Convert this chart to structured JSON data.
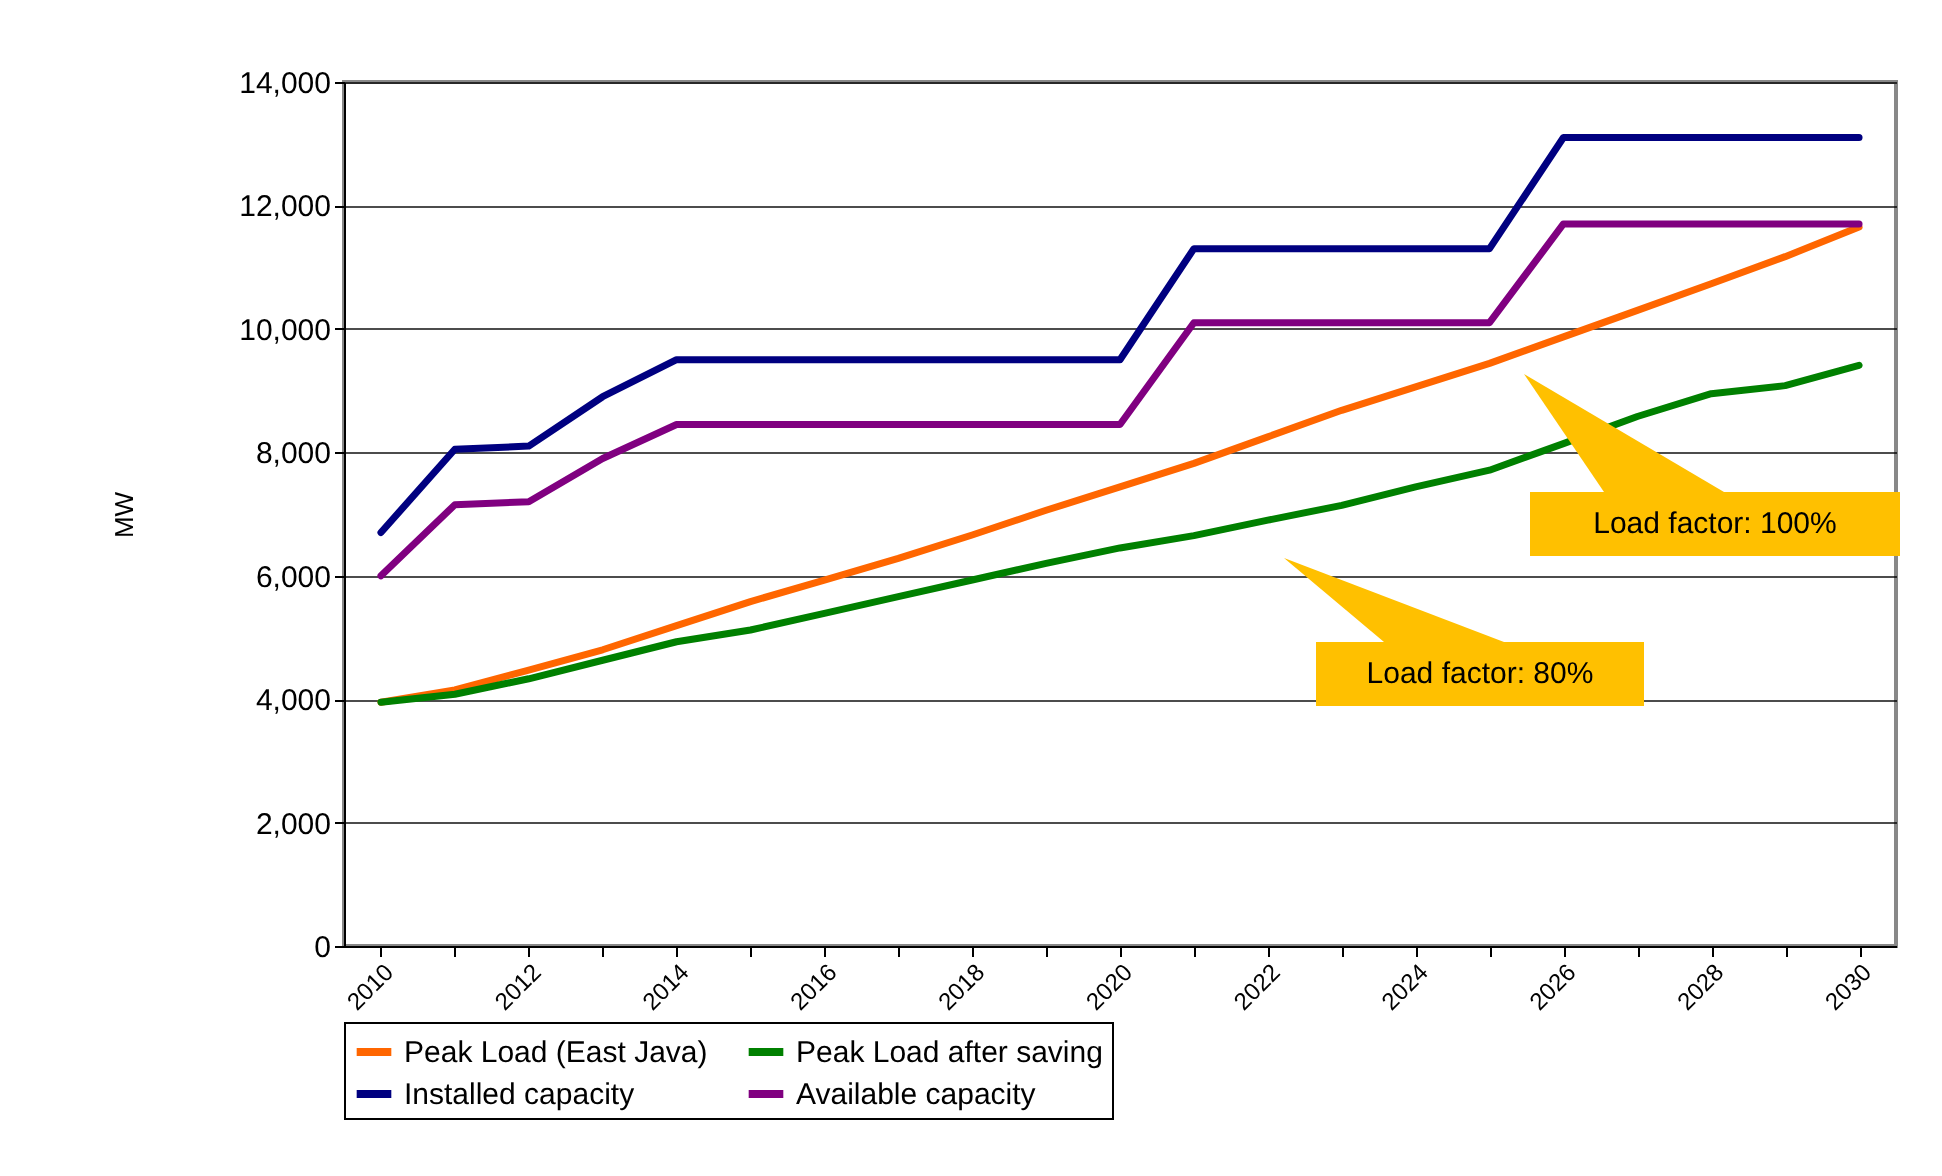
{
  "chart_data": {
    "type": "line",
    "categories": [
      "2010",
      null,
      "2012",
      null,
      "2014",
      null,
      "2016",
      null,
      "2018",
      null,
      "2020",
      null,
      "2022",
      null,
      "2024",
      null,
      "2026",
      null,
      "2028",
      null,
      "2030"
    ],
    "ylabel": "MW",
    "ylim": [
      0,
      14000
    ],
    "yticks": [
      0,
      {
        "value": 2000,
        "label": "2,000"
      },
      {
        "value": 4000,
        "label": "4,000"
      },
      {
        "value": 6000,
        "label": "6,000"
      },
      {
        "value": 8000,
        "label": "8,000"
      },
      {
        "value": 10000,
        "label": "10,000"
      },
      {
        "value": 12000,
        "label": "12,000"
      },
      {
        "value": 14000,
        "label": "14,000"
      }
    ],
    "grid": "y",
    "legend": "bottom",
    "marker": "none",
    "line_style": "solid",
    "annotations": [
      "Load factor: 100%",
      "Load factor: 80%"
    ],
    "series": [
      {
        "name": "Peak Load (East Java)",
        "color": "#ff6600",
        "values": [
          3950,
          4150,
          4470,
          4800,
          5190,
          5580,
          5930,
          6280,
          6660,
          7060,
          7440,
          7820,
          8250,
          8680,
          9060,
          9440,
          9870,
          10300,
          10730,
          11170,
          11650
        ]
      },
      {
        "name": "Peak Load after saving",
        "color": "#008000",
        "values": [
          3950,
          4080,
          4330,
          4630,
          4930,
          5120,
          5390,
          5660,
          5930,
          6200,
          6450,
          6650,
          6900,
          7140,
          7440,
          7710,
          8140,
          8580,
          8950,
          9080,
          9410
        ]
      },
      {
        "name": "Installed capacity",
        "color": "#000080",
        "values": [
          6700,
          8050,
          8100,
          8900,
          9500,
          9500,
          9500,
          9500,
          9500,
          9500,
          9500,
          11300,
          11300,
          11300,
          11300,
          11300,
          13100,
          13100,
          13100,
          13100,
          13100
        ]
      },
      {
        "name": "Available capacity",
        "color": "#800080",
        "values": [
          6000,
          7150,
          7200,
          7900,
          8450,
          8450,
          8450,
          8450,
          8450,
          8450,
          8450,
          10100,
          10100,
          10100,
          10100,
          10100,
          11700,
          11700,
          11700,
          11700,
          11700
        ]
      }
    ]
  }
}
